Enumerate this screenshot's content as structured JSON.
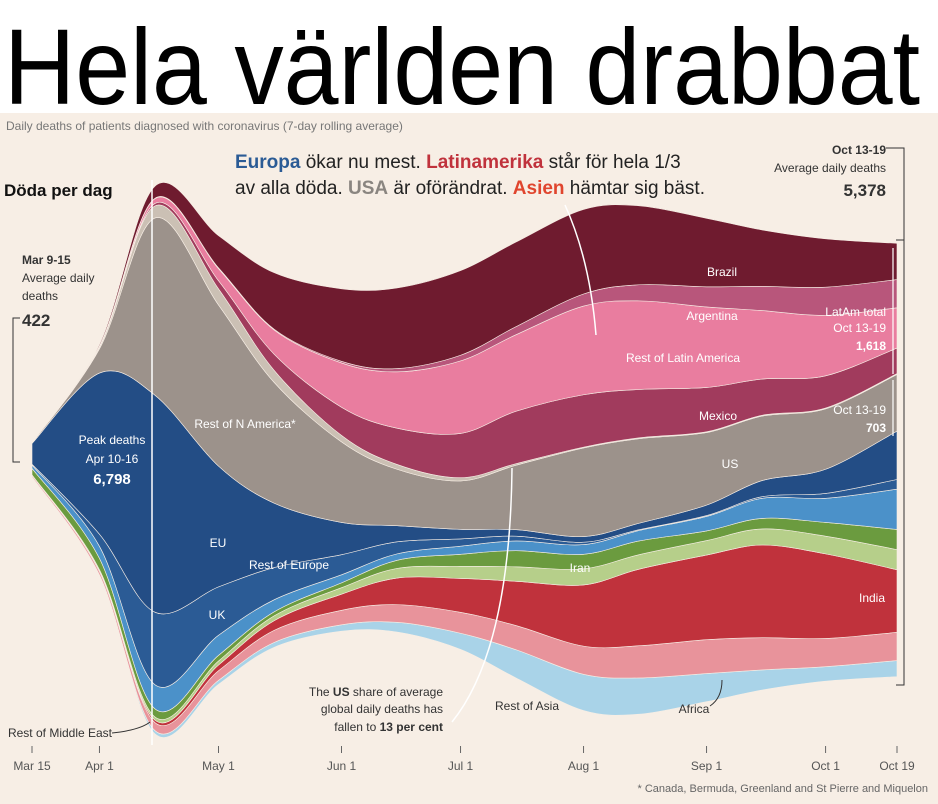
{
  "chart_data": {
    "type": "streamgraph",
    "title": "Hela världen drabbat",
    "subtitle": "Daily deaths of patients diagnosed with coronavirus (7-day rolling average)",
    "y_label": "Döda per dag",
    "footnote": "* Canada, Bermuda, Greenland and St Pierre and Miquelon",
    "headline": [
      [
        "Europa",
        " ökar nu mest. ",
        "Latinamerika",
        " står för hela 1/3"
      ],
      [
        "av alla döda. ",
        "USA",
        " är oförändrat. ",
        "Asien",
        " hämtar sig bäst."
      ]
    ],
    "start_note": {
      "period": "Mar 9-15",
      "text": [
        "Average daily",
        "deaths"
      ],
      "value": 422
    },
    "peak_note": {
      "text": "Peak deaths",
      "period": "Apr 10-16",
      "value": "6,798"
    },
    "end_note": {
      "period": "Oct 13-19",
      "text": "Average daily deaths",
      "value": "5,378"
    },
    "latam_note": {
      "text": "LatAm total",
      "period": "Oct 13-19",
      "value": "1,618"
    },
    "us_end_note": {
      "period": "Oct 13-19",
      "value": 703
    },
    "us_note": [
      [
        "The ",
        "US",
        " share of average"
      ],
      [
        "global daily deaths has"
      ],
      [
        "fallen to ",
        "13 per cent"
      ]
    ],
    "x": [
      "Mar 15",
      "Apr 1",
      "Apr 15",
      "May 1",
      "May 15",
      "Jun 1",
      "Jun 15",
      "Jul 1",
      "Jul 15",
      "Aug 1",
      "Aug 15",
      "Sep 1",
      "Sep 15",
      "Oct 1",
      "Oct 19"
    ],
    "xlim": [
      "Mar 15",
      "Oct 19"
    ],
    "xticks": [
      "Mar 15",
      "Apr 1",
      "May 1",
      "Jun 1",
      "Jul 1",
      "Aug 1",
      "Sep 1",
      "Oct 1",
      "Oct 19"
    ],
    "series": [
      {
        "name": "Africa",
        "color": "#a9d3e8",
        "values": [
          2,
          10,
          40,
          50,
          60,
          80,
          120,
          200,
          350,
          450,
          450,
          350,
          250,
          180,
          200
        ]
      },
      {
        "name": "Rest of Asia",
        "color": "#e8939b",
        "values": [
          20,
          40,
          100,
          120,
          150,
          180,
          220,
          260,
          300,
          350,
          400,
          420,
          400,
          350,
          350
        ]
      },
      {
        "name": "India",
        "color": "#c0323c",
        "values": [
          1,
          5,
          30,
          70,
          120,
          200,
          330,
          420,
          550,
          760,
          950,
          1050,
          1150,
          1050,
          777
        ]
      },
      {
        "name": "Rest of Middle East",
        "color": "#b6cf8a",
        "values": [
          5,
          20,
          40,
          50,
          60,
          80,
          120,
          150,
          180,
          200,
          180,
          180,
          200,
          220,
          250
        ]
      },
      {
        "name": "Iran",
        "color": "#6b9b3f",
        "values": [
          80,
          140,
          100,
          70,
          50,
          60,
          100,
          150,
          200,
          180,
          170,
          120,
          130,
          170,
          250
        ]
      },
      {
        "name": "Rest of Europe",
        "color": "#4b91c9",
        "values": [
          40,
          150,
          300,
          250,
          150,
          100,
          80,
          100,
          120,
          120,
          130,
          180,
          250,
          300,
          500
        ]
      },
      {
        "name": "UK",
        "color": "#2b5b95",
        "values": [
          10,
          150,
          900,
          600,
          400,
          250,
          150,
          90,
          60,
          30,
          10,
          10,
          20,
          60,
          120
        ]
      },
      {
        "name": "EU",
        "color": "#234d85",
        "values": [
          259,
          2000,
          2693,
          1500,
          800,
          400,
          200,
          120,
          80,
          70,
          80,
          130,
          200,
          300,
          600
        ]
      },
      {
        "name": "US",
        "color": "#9c928b",
        "values": [
          5,
          300,
          2200,
          2000,
          1500,
          1000,
          700,
          600,
          800,
          1100,
          1050,
          900,
          800,
          750,
          703
        ]
      },
      {
        "name": "Rest of N America*",
        "color": "#cbc0b4",
        "values": [
          0,
          20,
          150,
          200,
          150,
          80,
          60,
          40,
          20,
          10,
          10,
          10,
          10,
          10,
          10
        ]
      },
      {
        "name": "Mexico",
        "color": "#a13b5d",
        "values": [
          0,
          5,
          30,
          100,
          200,
          350,
          450,
          550,
          650,
          650,
          600,
          550,
          450,
          400,
          318
        ]
      },
      {
        "name": "Rest of Latin America",
        "color": "#e97d9f",
        "values": [
          0,
          10,
          60,
          150,
          300,
          550,
          700,
          900,
          950,
          1100,
          1100,
          1000,
          850,
          750,
          500
        ]
      },
      {
        "name": "Argentina",
        "color": "#b8567b",
        "values": [
          0,
          2,
          5,
          10,
          10,
          20,
          40,
          70,
          100,
          150,
          200,
          250,
          300,
          350,
          350
        ]
      },
      {
        "name": "Brazil",
        "color": "#6f1b2f",
        "values": [
          0,
          20,
          150,
          400,
          700,
          900,
          1000,
          1050,
          1050,
          1050,
          980,
          850,
          700,
          600,
          450
        ]
      }
    ]
  }
}
